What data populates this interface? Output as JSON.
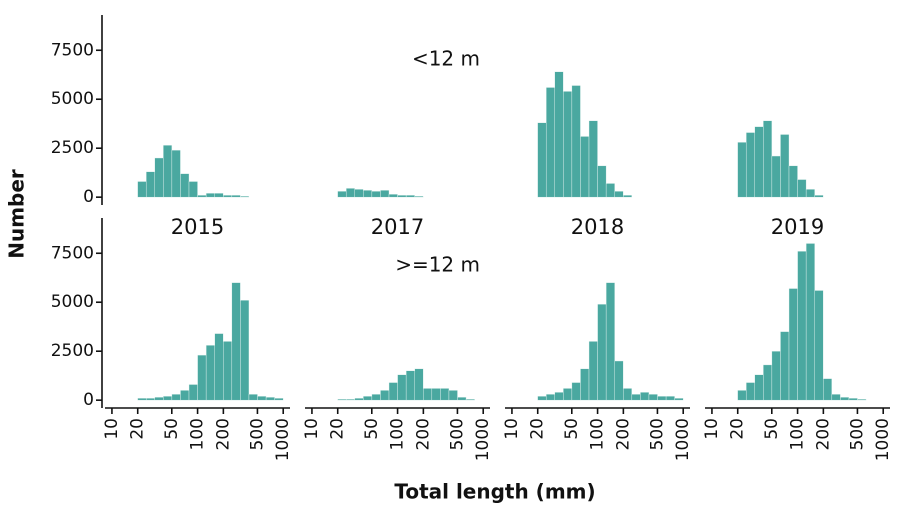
{
  "ylabel": "Number",
  "xlabel": "Total length (mm)",
  "chart_data": [
    {
      "type": "histogram",
      "log_x": true,
      "color": "#4aa8a0",
      "xlim": [
        8.3,
        1200
      ],
      "ylim": [
        -400,
        9300
      ],
      "yticks": [
        0,
        2500,
        5000,
        7500
      ],
      "bins": [
        10,
        12.59,
        15.85,
        19.95,
        25.12,
        31.62,
        39.81,
        50.12,
        63.1,
        79.43,
        100,
        125.9,
        158.5,
        199.5,
        251.2,
        316.2,
        398.1,
        501.2,
        631,
        794.3,
        1000
      ],
      "counts": [
        0,
        0,
        0,
        800,
        1300,
        2000,
        2650,
        2400,
        1200,
        800,
        100,
        200,
        200,
        100,
        100,
        50,
        0,
        0,
        0,
        0
      ]
    },
    {
      "type": "histogram",
      "log_x": true,
      "color": "#4aa8a0",
      "xlim": [
        8.3,
        1200
      ],
      "ylim": [
        -400,
        9300
      ],
      "annotation": "<12 m",
      "bins": [
        10,
        12.59,
        15.85,
        19.95,
        25.12,
        31.62,
        39.81,
        50.12,
        63.1,
        79.43,
        100,
        125.9,
        158.5,
        199.5,
        251.2,
        316.2,
        398.1,
        501.2,
        631,
        794.3,
        1000
      ],
      "counts": [
        0,
        0,
        0,
        300,
        450,
        400,
        350,
        300,
        350,
        150,
        100,
        100,
        50,
        0,
        0,
        0,
        0,
        0,
        0,
        0
      ]
    },
    {
      "type": "histogram",
      "log_x": true,
      "color": "#4aa8a0",
      "xlim": [
        8.3,
        1200
      ],
      "ylim": [
        -400,
        9300
      ],
      "bins": [
        10,
        12.59,
        15.85,
        19.95,
        25.12,
        31.62,
        39.81,
        50.12,
        63.1,
        79.43,
        100,
        125.9,
        158.5,
        199.5,
        251.2,
        316.2,
        398.1,
        501.2,
        631,
        794.3,
        1000
      ],
      "counts": [
        0,
        0,
        0,
        3800,
        5600,
        6400,
        5400,
        5700,
        3100,
        3900,
        1600,
        700,
        300,
        100,
        0,
        0,
        0,
        0,
        0,
        0
      ]
    },
    {
      "type": "histogram",
      "log_x": true,
      "color": "#4aa8a0",
      "xlim": [
        8.3,
        1200
      ],
      "ylim": [
        -400,
        9300
      ],
      "bins": [
        10,
        12.59,
        15.85,
        19.95,
        25.12,
        31.62,
        39.81,
        50.12,
        63.1,
        79.43,
        100,
        125.9,
        158.5,
        199.5,
        251.2,
        316.2,
        398.1,
        501.2,
        631,
        794.3,
        1000
      ],
      "counts": [
        0,
        0,
        0,
        2800,
        3300,
        3600,
        3900,
        2100,
        3200,
        1600,
        900,
        400,
        100,
        0,
        0,
        0,
        0,
        0,
        0,
        0
      ]
    },
    {
      "type": "histogram",
      "log_x": true,
      "color": "#4aa8a0",
      "title": "2015",
      "xlim": [
        8.3,
        1200
      ],
      "ylim": [
        -400,
        9300
      ],
      "yticks": [
        0,
        2500,
        5000,
        7500
      ],
      "xticks": [
        10,
        20,
        50,
        100,
        200,
        500,
        1000
      ],
      "bins": [
        10,
        12.59,
        15.85,
        19.95,
        25.12,
        31.62,
        39.81,
        50.12,
        63.1,
        79.43,
        100,
        125.9,
        158.5,
        199.5,
        251.2,
        316.2,
        398.1,
        501.2,
        631,
        794.3,
        1000
      ],
      "counts": [
        0,
        0,
        0,
        100,
        100,
        150,
        200,
        300,
        500,
        800,
        2300,
        2800,
        3400,
        3000,
        6000,
        5100,
        300,
        200,
        150,
        100
      ]
    },
    {
      "type": "histogram",
      "log_x": true,
      "color": "#4aa8a0",
      "title": "2017",
      "annotation": ">=12 m",
      "xlim": [
        8.3,
        1200
      ],
      "ylim": [
        -400,
        9300
      ],
      "xticks": [
        10,
        20,
        50,
        100,
        200,
        500,
        1000
      ],
      "bins": [
        10,
        12.59,
        15.85,
        19.95,
        25.12,
        31.62,
        39.81,
        50.12,
        63.1,
        79.43,
        100,
        125.9,
        158.5,
        199.5,
        251.2,
        316.2,
        398.1,
        501.2,
        631,
        794.3,
        1000
      ],
      "counts": [
        0,
        0,
        0,
        50,
        50,
        100,
        200,
        300,
        500,
        900,
        1300,
        1500,
        1600,
        600,
        600,
        600,
        500,
        150,
        50,
        0
      ]
    },
    {
      "type": "histogram",
      "log_x": true,
      "color": "#4aa8a0",
      "title": "2018",
      "xlim": [
        8.3,
        1200
      ],
      "ylim": [
        -400,
        9300
      ],
      "xticks": [
        10,
        20,
        50,
        100,
        200,
        500,
        1000
      ],
      "bins": [
        10,
        12.59,
        15.85,
        19.95,
        25.12,
        31.62,
        39.81,
        50.12,
        63.1,
        79.43,
        100,
        125.9,
        158.5,
        199.5,
        251.2,
        316.2,
        398.1,
        501.2,
        631,
        794.3,
        1000
      ],
      "counts": [
        0,
        0,
        0,
        200,
        300,
        400,
        600,
        900,
        1600,
        3000,
        4900,
        6000,
        2000,
        600,
        300,
        400,
        300,
        200,
        200,
        100
      ]
    },
    {
      "type": "histogram",
      "log_x": true,
      "color": "#4aa8a0",
      "title": "2019",
      "xlim": [
        8.3,
        1200
      ],
      "ylim": [
        -400,
        9300
      ],
      "xticks": [
        10,
        20,
        50,
        100,
        200,
        500,
        1000
      ],
      "bins": [
        10,
        12.59,
        15.85,
        19.95,
        25.12,
        31.62,
        39.81,
        50.12,
        63.1,
        79.43,
        100,
        125.9,
        158.5,
        199.5,
        251.2,
        316.2,
        398.1,
        501.2,
        631,
        794.3,
        1000
      ],
      "counts": [
        0,
        0,
        0,
        500,
        900,
        1300,
        1800,
        2500,
        3500,
        5700,
        7600,
        8000,
        5600,
        1100,
        300,
        150,
        100,
        50,
        0,
        0
      ]
    }
  ]
}
